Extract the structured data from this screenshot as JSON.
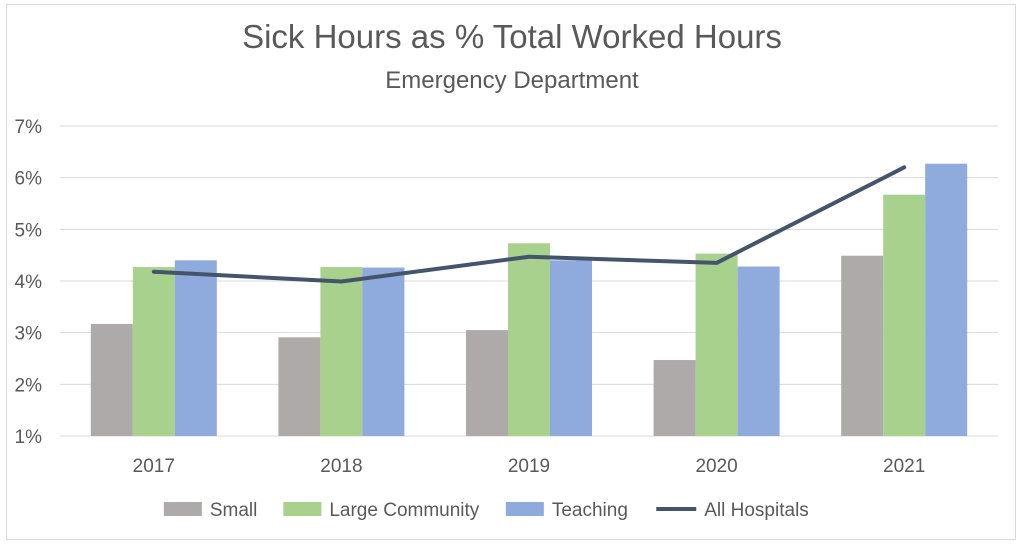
{
  "chart_data": {
    "type": "bar",
    "title": "Sick Hours as % Total Worked Hours",
    "subtitle": "Emergency Department",
    "categories": [
      "2017",
      "2018",
      "2019",
      "2020",
      "2021"
    ],
    "ylim": [
      1,
      7
    ],
    "yticks": [
      1,
      2,
      3,
      4,
      5,
      6,
      7
    ],
    "ytick_labels": [
      "1%",
      "2%",
      "3%",
      "4%",
      "5%",
      "6%",
      "7%"
    ],
    "grid": true,
    "legend_position": "bottom",
    "series": [
      {
        "name": "Small",
        "kind": "bar",
        "color": "#aeaaaa",
        "values": [
          3.17,
          2.91,
          3.05,
          2.47,
          4.49
        ]
      },
      {
        "name": "Large Community",
        "kind": "bar",
        "color": "#a9d18e",
        "values": [
          4.27,
          4.27,
          4.73,
          4.53,
          5.67
        ]
      },
      {
        "name": "Teaching",
        "kind": "bar",
        "color": "#8faadc",
        "values": [
          4.4,
          4.26,
          4.4,
          4.28,
          6.27
        ]
      },
      {
        "name": "All Hospitals",
        "kind": "line",
        "color": "#44546a",
        "values": [
          4.18,
          3.99,
          4.47,
          4.35,
          6.2
        ]
      }
    ]
  }
}
